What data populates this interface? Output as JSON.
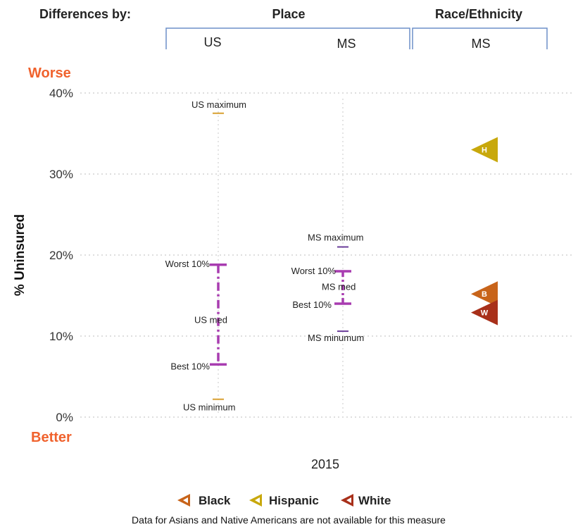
{
  "header": {
    "differences_label": "Differences by:",
    "place_label": "Place",
    "race_label": "Race/Ethnicity",
    "sub_us": "US",
    "sub_ms": "MS",
    "sub_race_ms": "MS"
  },
  "labels": {
    "worse": "Worse",
    "better": "Better",
    "x_category": "2015"
  },
  "legend": [
    {
      "key": "B",
      "label": "Black",
      "color": "#c8641a"
    },
    {
      "key": "H",
      "label": "Hispanic",
      "color": "#c8a80c"
    },
    {
      "key": "W",
      "label": "White",
      "color": "#a8301a"
    }
  ],
  "footnote": "Data for Asians and Native Americans are not available for this measure",
  "chart_data": {
    "type": "range",
    "ylabel": "% Uninsured",
    "ylim": [
      0,
      40
    ],
    "yticks": [
      0,
      10,
      20,
      30,
      40
    ],
    "ytick_labels": [
      "0%",
      "10%",
      "20%",
      "30%",
      "40%"
    ],
    "grid": true,
    "x_category": "2015",
    "colors": {
      "range": "#a83cb0",
      "extreme": "#d9a030",
      "ms_extreme": "#6a3c9a"
    },
    "us": {
      "maximum": 37.5,
      "maximum_label": "US maximum",
      "worst10": 18.8,
      "worst10_label": "Worst 10%",
      "median": 11.8,
      "median_label": "US med",
      "best10": 6.5,
      "best10_label": "Best 10%",
      "minimum": 2.2,
      "minimum_label": "US minimum"
    },
    "ms": {
      "maximum": 21.0,
      "maximum_label": "MS maximum",
      "worst10": 18.0,
      "worst10_label": "Worst 10%",
      "median": 15.6,
      "median_label": "MS med",
      "best10": 14.0,
      "best10_label": "Best 10%",
      "minimum": 10.6,
      "minimum_label": "MS minumum"
    },
    "race_ethnicity_ms": [
      {
        "key": "H",
        "name": "Hispanic",
        "value": 33.0,
        "color": "#c8a80c"
      },
      {
        "key": "B",
        "name": "Black",
        "value": 15.2,
        "color": "#c8641a"
      },
      {
        "key": "W",
        "name": "White",
        "value": 12.9,
        "color": "#a8301a"
      }
    ]
  }
}
